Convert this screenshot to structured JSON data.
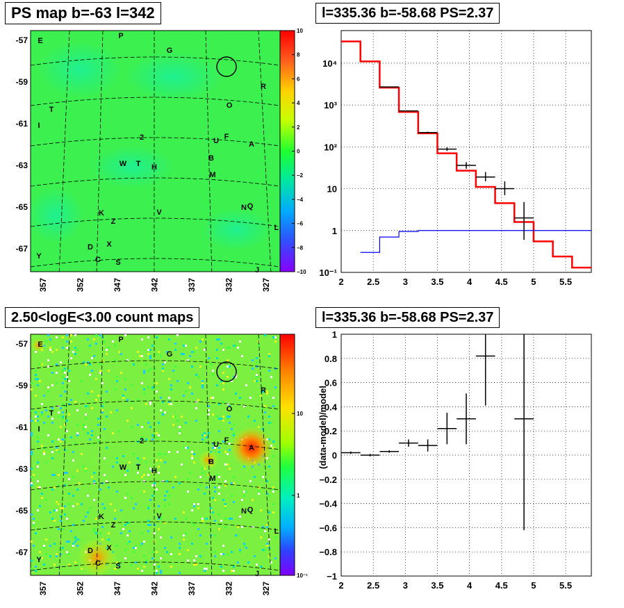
{
  "panels": {
    "ps_map": {
      "title": "PS map b=-63 l=342"
    },
    "spectrum": {
      "title": "l=335.36 b=-58.68 PS=2.37"
    },
    "count_map": {
      "title": "2.50<logE<3.00 count maps"
    },
    "residual": {
      "title": "l=335.36 b=-58.68 PS=2.37"
    }
  },
  "map_labels": [
    "E",
    "P",
    "G",
    "R",
    "O",
    "T",
    "I",
    "2",
    "U",
    "F",
    "A",
    "B",
    "W",
    "T",
    "H",
    "M",
    "K",
    "Z",
    "V",
    "N",
    "Q",
    "L",
    "D",
    "X",
    "C",
    "S",
    "Y",
    "J"
  ],
  "map_axes": {
    "y_ticks": [
      "-57",
      "-59",
      "-61",
      "-63",
      "-65",
      "-67"
    ],
    "x_ticks": [
      "357",
      "352",
      "347",
      "342",
      "337",
      "332",
      "327"
    ]
  },
  "ps_colorbar": {
    "ticks": [
      "10",
      "8",
      "6",
      "4",
      "2",
      "0",
      "−2",
      "−4",
      "−6",
      "−8",
      "−10"
    ]
  },
  "count_colorbar": {
    "ticks": [
      "10",
      "1",
      "10⁻¹"
    ]
  },
  "chart_data": [
    {
      "type": "line",
      "panel": "spectrum",
      "xlim": [
        2,
        5.9
      ],
      "ylim": [
        0.1,
        60000
      ],
      "yscale": "log",
      "grid": true,
      "x_ticks": [
        "2",
        "2.5",
        "3",
        "3.5",
        "4",
        "4.5",
        "5",
        "5.5"
      ],
      "y_ticks": [
        "10⁻¹",
        "1",
        "10",
        "10²",
        "10³",
        "10⁴"
      ],
      "series": [
        {
          "color": "#ff0000",
          "style": "step",
          "edges": [
            2.0,
            2.3,
            2.6,
            2.9,
            3.2,
            3.5,
            3.8,
            4.1,
            4.4,
            4.7,
            5.0,
            5.3,
            5.6,
            5.9
          ],
          "values": [
            33000,
            11000,
            2600,
            680,
            210,
            70,
            27,
            11,
            4.5,
            1.6,
            0.55,
            0.24,
            0.13
          ]
        },
        {
          "color": "#0000ff",
          "style": "step",
          "edges": [
            2.3,
            2.6,
            2.9,
            3.2,
            5.9
          ],
          "values": [
            0.3,
            0.7,
            0.95,
            1.0
          ]
        },
        {
          "color": "#000000",
          "style": "errorbars",
          "points": [
            {
              "x": 2.75,
              "xerr": 0.15,
              "y": 2700,
              "ylo": 2700,
              "yhi": 2700
            },
            {
              "x": 3.05,
              "xerr": 0.15,
              "y": 720,
              "ylo": 720,
              "yhi": 720
            },
            {
              "x": 3.35,
              "xerr": 0.15,
              "y": 220,
              "ylo": 210,
              "yhi": 230
            },
            {
              "x": 3.65,
              "xerr": 0.15,
              "y": 88,
              "ylo": 80,
              "yhi": 97
            },
            {
              "x": 3.95,
              "xerr": 0.15,
              "y": 36,
              "ylo": 30,
              "yhi": 43
            },
            {
              "x": 4.25,
              "xerr": 0.15,
              "y": 19,
              "ylo": 15,
              "yhi": 25
            },
            {
              "x": 4.55,
              "xerr": 0.15,
              "y": 10,
              "ylo": 7,
              "yhi": 15
            },
            {
              "x": 4.85,
              "xerr": 0.15,
              "y": 2,
              "ylo": 0.6,
              "yhi": 4.8
            }
          ]
        }
      ]
    },
    {
      "type": "scatter",
      "panel": "residual",
      "ylabel": "(data-model)/model",
      "xlim": [
        2,
        5.9
      ],
      "ylim": [
        -1,
        1
      ],
      "grid": true,
      "x_ticks": [
        "2",
        "2.5",
        "3",
        "3.5",
        "4",
        "4.5",
        "5",
        "5.5"
      ],
      "y_ticks": [
        "−1",
        "−0.8",
        "−0.6",
        "−0.4",
        "−0.2",
        "0",
        "0.2",
        "0.4",
        "0.6",
        "0.8",
        "1"
      ],
      "points": [
        {
          "x": 2.15,
          "xerr": 0.15,
          "y": 0.02,
          "ylo": 0.01,
          "yhi": 0.03
        },
        {
          "x": 2.45,
          "xerr": 0.15,
          "y": 0.0,
          "ylo": -0.01,
          "yhi": 0.01
        },
        {
          "x": 2.75,
          "xerr": 0.15,
          "y": 0.03,
          "ylo": 0.02,
          "yhi": 0.04
        },
        {
          "x": 3.05,
          "xerr": 0.15,
          "y": 0.1,
          "ylo": 0.07,
          "yhi": 0.13
        },
        {
          "x": 3.35,
          "xerr": 0.15,
          "y": 0.08,
          "ylo": 0.03,
          "yhi": 0.13
        },
        {
          "x": 3.65,
          "xerr": 0.15,
          "y": 0.22,
          "ylo": 0.09,
          "yhi": 0.35
        },
        {
          "x": 3.95,
          "xerr": 0.15,
          "y": 0.3,
          "ylo": 0.09,
          "yhi": 0.51
        },
        {
          "x": 4.25,
          "xerr": 0.15,
          "y": 0.82,
          "ylo": 0.41,
          "yhi": 1.0
        },
        {
          "x": 4.85,
          "xerr": 0.15,
          "y": 0.3,
          "ylo": -0.62,
          "yhi": 1.0
        }
      ]
    }
  ]
}
